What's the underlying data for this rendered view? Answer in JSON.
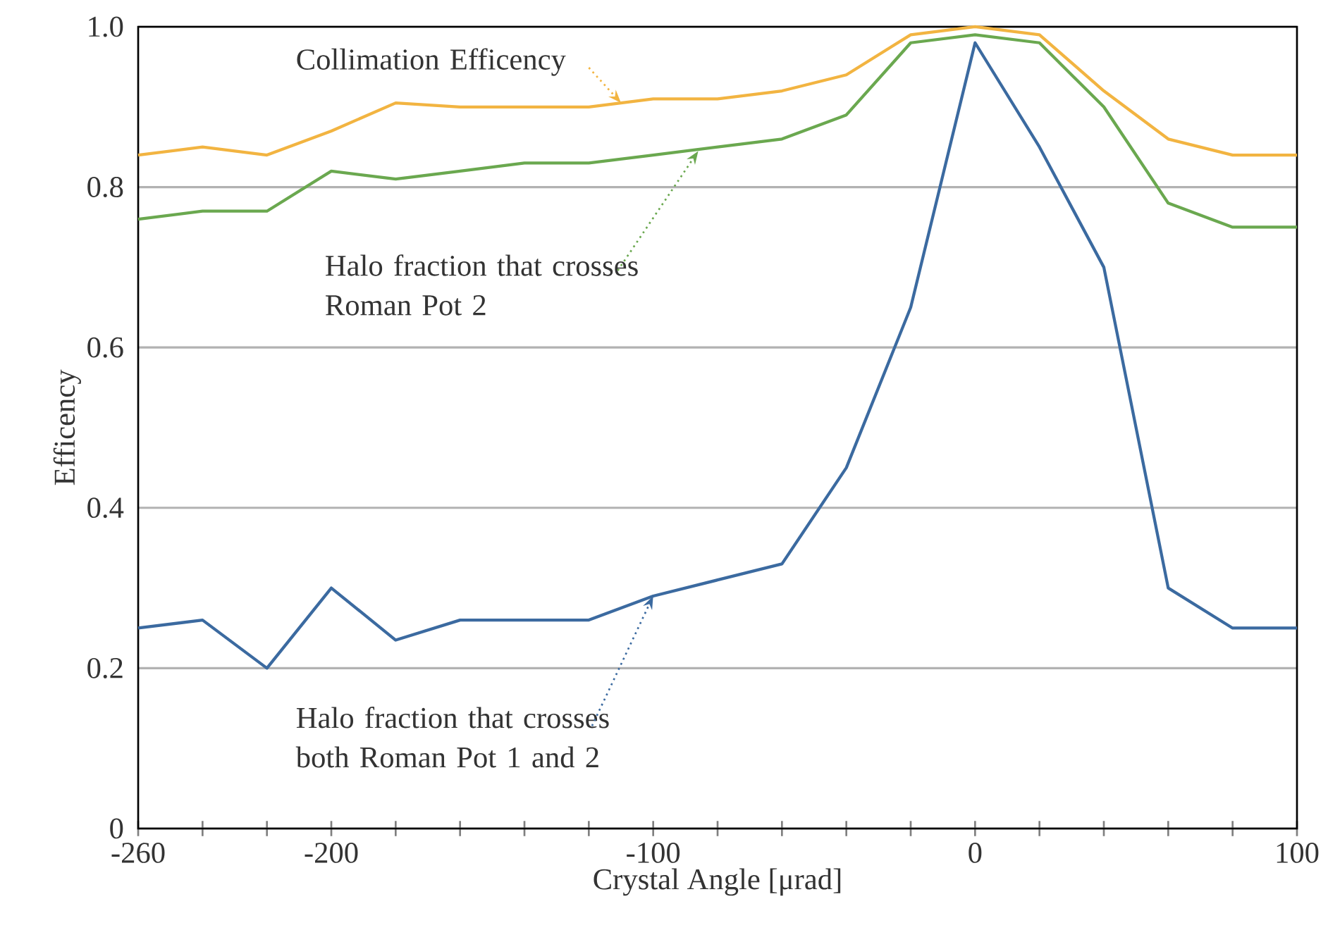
{
  "chart_data": {
    "type": "line",
    "xlabel": "Crystal Angle [μrad]",
    "ylabel": "Efficency",
    "x": [
      -260,
      -240,
      -220,
      -200,
      -180,
      -160,
      -140,
      -120,
      -100,
      -80,
      -60,
      -40,
      -20,
      0,
      20,
      40,
      60,
      80,
      100
    ],
    "series": [
      {
        "color": "#f2b441",
        "values": [
          0.84,
          0.85,
          0.84,
          0.87,
          0.905,
          0.9,
          0.9,
          0.9,
          0.91,
          0.91,
          0.92,
          0.94,
          0.99,
          1.0,
          0.99,
          0.92,
          0.86,
          0.84,
          0.84
        ]
      },
      {
        "color": "#6aa84f",
        "values": [
          0.76,
          0.77,
          0.77,
          0.82,
          0.81,
          0.82,
          0.83,
          0.83,
          0.84,
          0.85,
          0.86,
          0.89,
          0.98,
          0.99,
          0.98,
          0.9,
          0.78,
          0.75,
          0.75
        ]
      },
      {
        "color": "#3b6aa0",
        "values": [
          0.25,
          0.26,
          0.2,
          0.3,
          0.235,
          0.26,
          0.26,
          0.26,
          0.29,
          0.31,
          0.33,
          0.45,
          0.65,
          0.98,
          0.85,
          0.7,
          0.3,
          0.25,
          0.25
        ]
      }
    ],
    "annotations": [
      {
        "text": "Collimation Efficency",
        "x": -110,
        "y": 0.905
      },
      {
        "text": "Halo fraction that crosses Roman Pot 2",
        "x": -86,
        "y": 0.845
      },
      {
        "text": "Halo fraction that crosses both Roman Pot 1 and 2",
        "x": -100,
        "y": 0.29
      }
    ],
    "xlim": [
      -260,
      100
    ],
    "xticks": [
      -260,
      {
        "value": -240,
        "label": null
      },
      {
        "value": -220,
        "label": null
      },
      -200,
      {
        "value": -180,
        "label": null
      },
      {
        "value": -160,
        "label": null
      },
      {
        "value": -140,
        "label": null
      },
      {
        "value": -120,
        "label": null
      },
      -100,
      {
        "value": -80,
        "label": null
      },
      {
        "value": -60,
        "label": null
      },
      {
        "value": -40,
        "label": null
      },
      {
        "value": -20,
        "label": null
      },
      0,
      {
        "value": 20,
        "label": null
      },
      {
        "value": 40,
        "label": null
      },
      {
        "value": 60,
        "label": null
      },
      {
        "value": 80,
        "label": null
      },
      100
    ],
    "ylim": [
      0,
      1
    ],
    "yticks": [
      0,
      0.2,
      0.4,
      0.6,
      0.8,
      {
        "value": 1,
        "label": "1.0"
      }
    ],
    "grid": "y"
  }
}
